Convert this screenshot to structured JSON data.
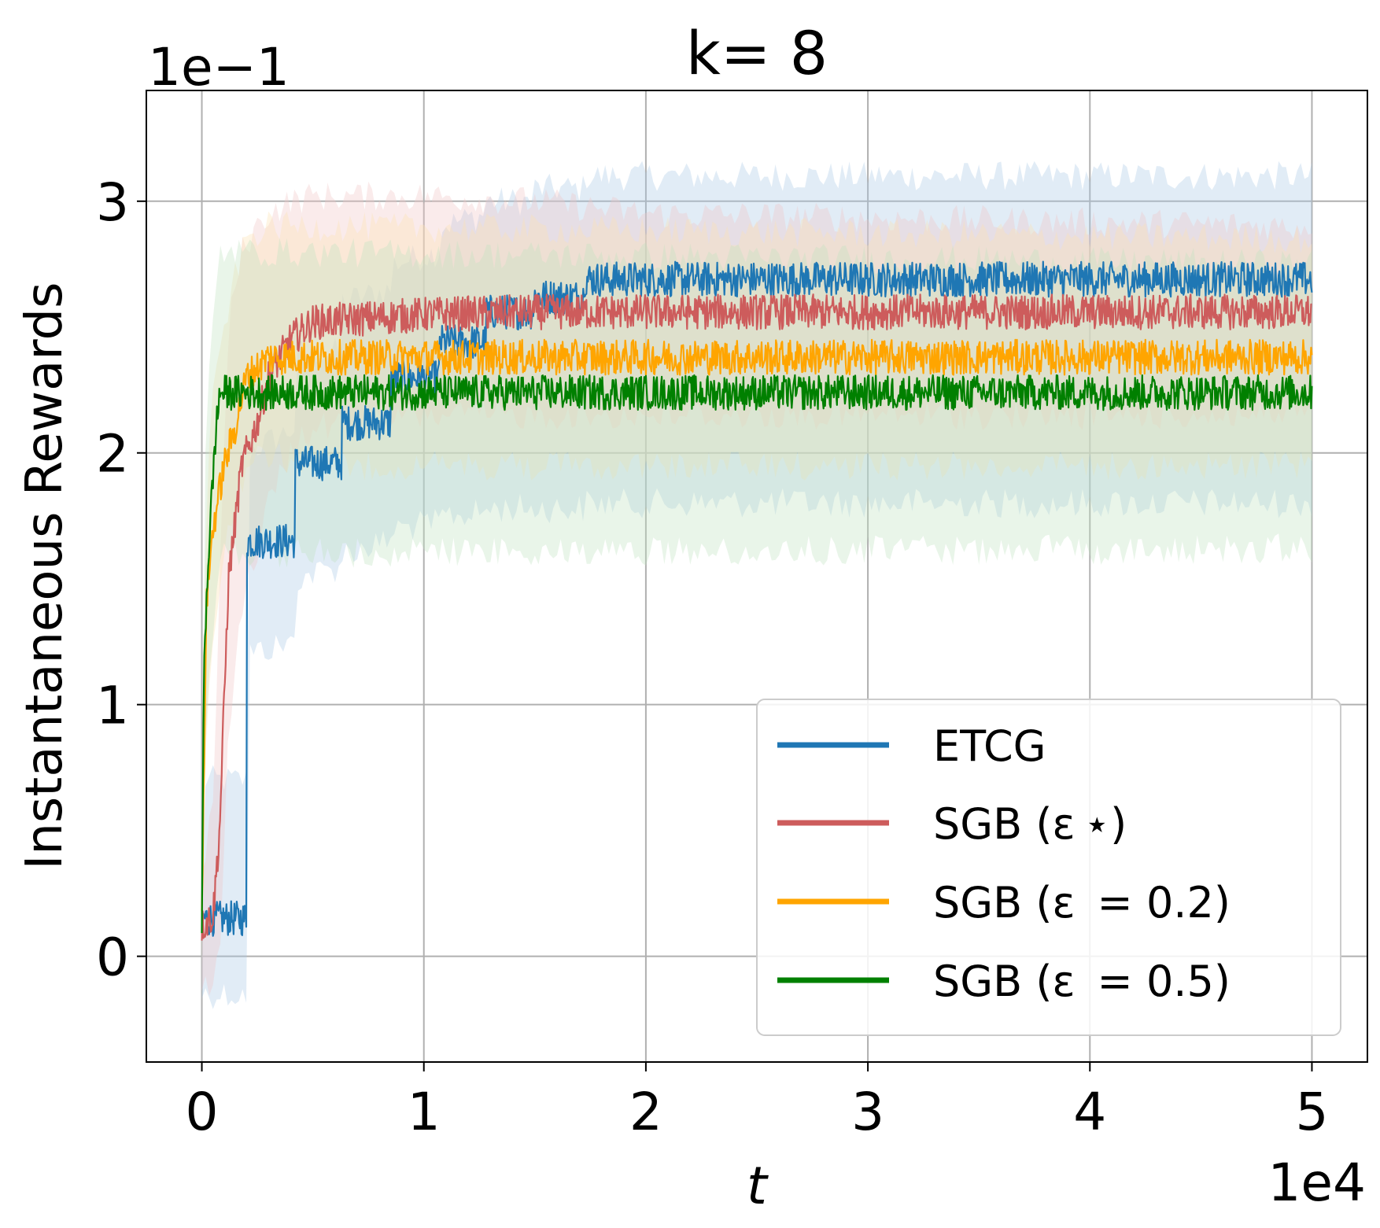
{
  "chart_data": {
    "type": "line",
    "title": "k= 8",
    "xlabel": "t",
    "ylabel": "Instantaneous Rewards",
    "x_offset_text": "1e4",
    "y_offset_text": "1e−1",
    "xlim": [
      -0.25,
      5.25
    ],
    "ylim": [
      -0.42,
      3.44
    ],
    "xticks": [
      0,
      1,
      2,
      3,
      4,
      5
    ],
    "xtick_labels": [
      "0",
      "1",
      "2",
      "3",
      "4",
      "5"
    ],
    "yticks": [
      0,
      1,
      2,
      3
    ],
    "ytick_labels": [
      "0",
      "1",
      "2",
      "3"
    ],
    "grid": true,
    "legend_position": "lower-right",
    "noise_amplitude": 0.07,
    "series": [
      {
        "name": "ETCG",
        "color": "#1f77b4",
        "band_color": "#aac8e4",
        "knots_x": [
          0,
          0.009,
          0.2,
          0.201,
          0.42,
          0.421,
          0.63,
          0.631,
          0.85,
          0.851,
          1.07,
          1.071,
          1.28,
          1.281,
          1.49,
          1.5,
          1.72,
          1.721,
          5.0
        ],
        "knots_y": [
          0.12,
          0.15,
          0.15,
          1.65,
          1.65,
          1.96,
          1.96,
          2.12,
          2.12,
          2.3,
          2.3,
          2.44,
          2.44,
          2.56,
          2.56,
          2.62,
          2.62,
          2.69,
          2.69
        ],
        "band_upper": [
          0.3,
          0.7,
          0.7,
          2.0,
          2.1,
          2.4,
          2.4,
          2.6,
          2.65,
          2.75,
          2.8,
          2.9,
          2.95,
          3.0,
          3.0,
          3.05,
          3.05,
          3.1,
          3.1
        ],
        "band_lower": [
          -0.15,
          -0.15,
          -0.15,
          1.2,
          1.25,
          1.5,
          1.55,
          1.6,
          1.65,
          1.7,
          1.72,
          1.75,
          1.76,
          1.78,
          1.78,
          1.78,
          1.78,
          1.8,
          1.8
        ]
      },
      {
        "name": "SGB (ε ⋆)",
        "color": "#cd5c5c",
        "band_color": "#f2c5c5",
        "knots_x": [
          0,
          0.05,
          0.08,
          0.12,
          0.18,
          0.25,
          0.3,
          0.4,
          0.5,
          1.0,
          1.5,
          2.0,
          5.0
        ],
        "knots_y": [
          0.12,
          0.16,
          0.5,
          1.5,
          1.95,
          2.12,
          2.3,
          2.45,
          2.52,
          2.55,
          2.56,
          2.56,
          2.56
        ],
        "band_upper": [
          0.3,
          0.6,
          1.5,
          2.5,
          2.8,
          2.9,
          2.95,
          3.0,
          3.02,
          3.02,
          3.0,
          2.95,
          2.9
        ],
        "band_lower": [
          -0.1,
          -0.1,
          0.0,
          0.9,
          1.4,
          1.6,
          1.8,
          2.0,
          2.1,
          2.15,
          2.15,
          2.15,
          2.15
        ]
      },
      {
        "name": "SGB (ε  = 0.2)",
        "color": "#ffa500",
        "band_color": "#fde2b3",
        "knots_x": [
          0,
          0.02,
          0.05,
          0.1,
          0.15,
          0.2,
          0.3,
          0.5,
          5.0
        ],
        "knots_y": [
          0.12,
          1.4,
          1.7,
          1.95,
          2.1,
          2.3,
          2.38,
          2.38,
          2.38
        ],
        "band_upper": [
          0.4,
          1.9,
          2.2,
          2.5,
          2.7,
          2.85,
          2.9,
          2.9,
          2.85
        ],
        "band_lower": [
          0.0,
          0.9,
          1.3,
          1.6,
          1.8,
          1.95,
          2.0,
          1.95,
          1.95
        ]
      },
      {
        "name": "SGB (ε  = 0.5)",
        "color": "#008000",
        "band_color": "#bfe2bf",
        "knots_x": [
          0,
          0.01,
          0.03,
          0.06,
          0.08,
          5.0
        ],
        "knots_y": [
          0.12,
          1.2,
          1.6,
          2.05,
          2.24,
          2.24
        ],
        "band_upper": [
          0.5,
          1.8,
          2.3,
          2.6,
          2.8,
          2.75
        ],
        "band_lower": [
          0.0,
          0.8,
          1.1,
          1.4,
          1.6,
          1.62
        ]
      }
    ]
  }
}
